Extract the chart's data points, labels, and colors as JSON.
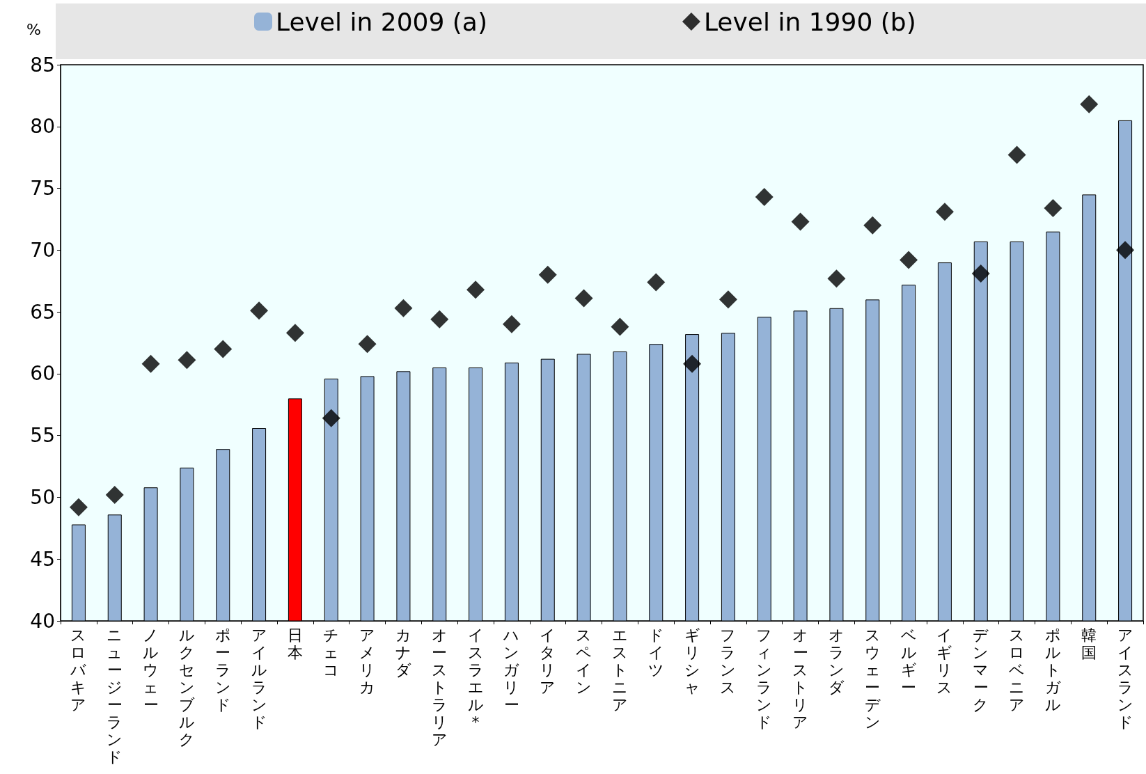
{
  "chart_data": {
    "type": "bar",
    "ylabel": "%",
    "categories": [
      "スロバキア",
      "ニュージーランド",
      "ノルウェー",
      "ルクセンブルク",
      "ポーランド",
      "アイルランド",
      "日本",
      "チェコ",
      "アメリカ",
      "カナダ",
      "オーストラリア",
      "イスラエル*",
      "ハンガリー",
      "イタリア",
      "スペイン",
      "エストニア",
      "ドイツ",
      "ギリシャ",
      "フランス",
      "フィンランド",
      "オーストリア",
      "オランダ",
      "スウェーデン",
      "ベルギー",
      "イギリス",
      "デンマーク",
      "スロベニア",
      "ポルトガル",
      "韓国",
      "アイスランド"
    ],
    "series": [
      {
        "name": "Level in 2009 (a)",
        "type": "bar",
        "color": "#95b3d7",
        "colors": [
          "#95b3d7",
          "#95b3d7",
          "#95b3d7",
          "#95b3d7",
          "#95b3d7",
          "#95b3d7",
          "#ff0000",
          "#95b3d7",
          "#95b3d7",
          "#95b3d7",
          "#95b3d7",
          "#95b3d7",
          "#95b3d7",
          "#95b3d7",
          "#95b3d7",
          "#95b3d7",
          "#95b3d7",
          "#95b3d7",
          "#95b3d7",
          "#95b3d7",
          "#95b3d7",
          "#95b3d7",
          "#95b3d7",
          "#95b3d7",
          "#95b3d7",
          "#95b3d7",
          "#95b3d7",
          "#95b3d7",
          "#95b3d7",
          "#95b3d7"
        ],
        "values": [
          47.8,
          48.6,
          50.8,
          52.4,
          53.9,
          55.6,
          58.0,
          59.6,
          59.8,
          60.2,
          60.5,
          60.5,
          60.9,
          61.2,
          61.6,
          61.8,
          62.4,
          63.2,
          63.3,
          64.6,
          65.1,
          65.3,
          66.0,
          67.2,
          69.0,
          70.7,
          70.7,
          71.5,
          74.5,
          80.5
        ]
      },
      {
        "name": "Level in 1990 (b)",
        "type": "scatter",
        "marker": "diamond",
        "color": "#000000",
        "values": [
          49.2,
          50.2,
          60.8,
          61.1,
          62.0,
          65.1,
          63.3,
          56.4,
          62.4,
          65.3,
          64.4,
          66.8,
          64.0,
          68.0,
          66.1,
          63.8,
          67.4,
          60.8,
          66.0,
          74.3,
          72.3,
          67.7,
          72.0,
          69.2,
          73.1,
          68.1,
          77.7,
          73.4,
          81.8,
          70.0
        ]
      }
    ],
    "ylim": [
      40,
      85
    ],
    "yticks": [
      40,
      45,
      50,
      55,
      60,
      65,
      70,
      75,
      80,
      85
    ],
    "grid": false,
    "legend": "top"
  }
}
